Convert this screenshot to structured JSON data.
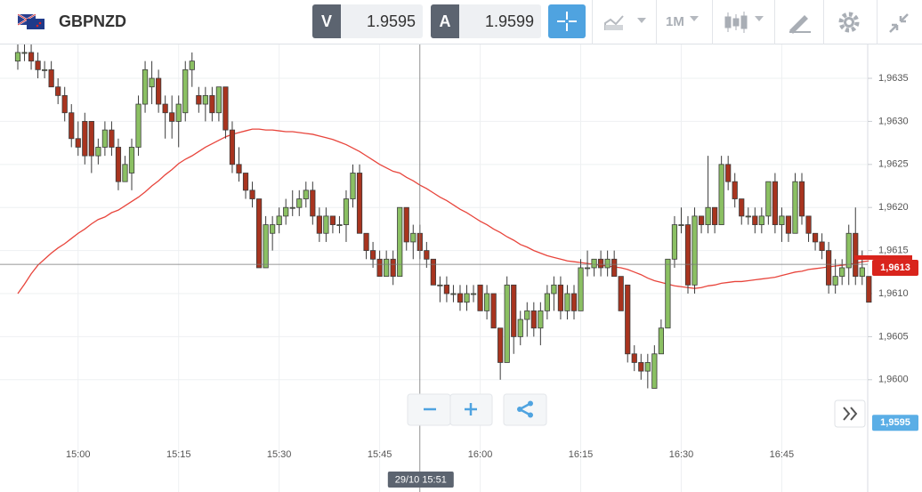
{
  "toolbar": {
    "symbol": "GBPNZD",
    "bid_label": "V",
    "bid": 1.9595,
    "ask_label": "A",
    "ask": 1.9599,
    "timeframe": "1M"
  },
  "chart_data": {
    "type": "candlestick",
    "categories": [
      null,
      null,
      null,
      null,
      null,
      null,
      null,
      null,
      null,
      "15:00",
      null,
      null,
      null,
      null,
      null,
      null,
      null,
      null,
      null,
      null,
      null,
      null,
      null,
      null,
      "15:15",
      null,
      null,
      null,
      null,
      null,
      null,
      null,
      null,
      null,
      null,
      null,
      null,
      null,
      null,
      "15:30",
      null,
      null,
      null,
      null,
      null,
      null,
      null,
      null,
      null,
      null,
      null,
      null,
      null,
      null,
      "15:45",
      null,
      null,
      null,
      null,
      null,
      null,
      null,
      null,
      null,
      null,
      null,
      null,
      null,
      null,
      "16:00",
      null,
      null,
      null,
      null,
      null,
      null,
      null,
      null,
      null,
      null,
      null,
      null,
      null,
      null,
      "16:15",
      null,
      null,
      null,
      null,
      null,
      null,
      null,
      null,
      null,
      null,
      null,
      null,
      null,
      null,
      "16:30",
      null,
      null,
      null,
      null,
      null,
      null,
      null,
      null,
      null,
      null,
      null,
      null,
      null,
      null,
      "16:45",
      null,
      null,
      null,
      null,
      null,
      null,
      null,
      null,
      null,
      null,
      null,
      null,
      null
    ],
    "open": [
      1.9637,
      1.9638,
      1.9638,
      1.9637,
      1.9636,
      1.9636,
      1.9634,
      1.9633,
      1.9631,
      1.9628,
      1.963,
      1.963,
      1.9626,
      1.9627,
      1.9629,
      1.9627,
      1.9623,
      1.9624,
      1.9627,
      1.9632,
      1.9634,
      1.9635,
      1.9632,
      1.9631,
      1.963,
      1.9631,
      1.9636,
      1.9633,
      1.9632,
      1.9633,
      1.9631,
      1.9634,
      1.9629,
      1.9625,
      1.9624,
      1.9622,
      1.9621,
      1.9613,
      1.9617,
      1.9618,
      1.9619,
      1.962,
      1.962,
      1.9621,
      1.9622,
      1.9619,
      1.9617,
      1.9619,
      1.9618,
      1.9618,
      1.9621,
      1.9624,
      1.9617,
      1.9615,
      1.9614,
      1.9612,
      1.9614,
      1.9612,
      1.962,
      1.9616,
      1.9617,
      1.9615,
      1.9614,
      1.9611,
      1.9611,
      1.961,
      1.961,
      1.9609,
      1.961,
      1.9611,
      1.9608,
      1.961,
      1.9606,
      1.9602,
      1.9611,
      1.9605,
      1.9607,
      1.9608,
      1.9606,
      1.9608,
      1.961,
      1.9611,
      1.9608,
      1.961,
      1.9608,
      1.9613,
      1.9613,
      1.9614,
      1.9613,
      1.9614,
      1.9612,
      1.9611,
      1.9603,
      1.9602,
      1.9601,
      1.9599,
      1.9603,
      1.9606,
      1.9614,
      1.9618,
      1.9618,
      1.9611,
      1.9619,
      1.9618,
      1.962,
      1.9618,
      1.9625,
      1.9623,
      1.9621,
      1.9619,
      1.9619,
      1.9618,
      1.9619,
      1.9623,
      1.9618,
      1.9619,
      1.9617,
      1.9623,
      1.9619,
      1.9617,
      1.9616,
      1.9615,
      1.9611,
      1.9612,
      1.9613,
      1.9617,
      1.9612,
      1.9612
    ],
    "high": [
      1.9639,
      1.9639,
      1.9639,
      1.9638,
      1.9637,
      1.9637,
      1.9635,
      1.9634,
      1.9632,
      1.963,
      1.9631,
      1.963,
      1.9628,
      1.963,
      1.963,
      1.9628,
      1.9626,
      1.9628,
      1.9633,
      1.9637,
      1.9637,
      1.9636,
      1.9633,
      1.9633,
      1.9633,
      1.9637,
      1.9638,
      1.9634,
      1.9634,
      1.9634,
      1.9634,
      1.9634,
      1.963,
      1.9627,
      1.9624,
      1.9623,
      1.9621,
      1.9619,
      1.9619,
      1.962,
      1.9621,
      1.9622,
      1.9622,
      1.9623,
      1.9623,
      1.962,
      1.962,
      1.9619,
      1.9619,
      1.9622,
      1.9625,
      1.9625,
      1.9617,
      1.9616,
      1.9615,
      1.9615,
      1.9615,
      1.962,
      1.962,
      1.9618,
      1.9618,
      1.9616,
      1.9614,
      1.9612,
      1.9612,
      1.9611,
      1.9611,
      1.9611,
      1.9611,
      1.9611,
      1.9611,
      1.961,
      1.9606,
      1.9612,
      1.9611,
      1.9608,
      1.9609,
      1.9609,
      1.9609,
      1.9611,
      1.9612,
      1.9612,
      1.9611,
      1.9611,
      1.9614,
      1.9615,
      1.9614,
      1.9615,
      1.9615,
      1.9615,
      1.9612,
      1.9611,
      1.9604,
      1.9603,
      1.9603,
      1.9604,
      1.9607,
      1.9614,
      1.9619,
      1.962,
      1.9619,
      1.962,
      1.9619,
      1.9626,
      1.962,
      1.9626,
      1.9626,
      1.9624,
      1.9621,
      1.962,
      1.962,
      1.962,
      1.9623,
      1.9624,
      1.962,
      1.9619,
      1.9624,
      1.9624,
      1.9619,
      1.9617,
      1.9617,
      1.9616,
      1.9614,
      1.9614,
      1.9618,
      1.962,
      1.9615,
      1.9612
    ],
    "low": [
      1.9636,
      1.9637,
      1.9636,
      1.9635,
      1.9635,
      1.9634,
      1.9632,
      1.963,
      1.9627,
      1.9626,
      1.9625,
      1.9624,
      1.9625,
      1.9626,
      1.9626,
      1.9622,
      1.9623,
      1.9622,
      1.9626,
      1.9631,
      1.9632,
      1.9631,
      1.9628,
      1.9628,
      1.9627,
      1.963,
      1.9634,
      1.9631,
      1.963,
      1.963,
      1.963,
      1.9628,
      1.9624,
      1.9623,
      1.9621,
      1.962,
      1.9613,
      1.9613,
      1.9615,
      1.9617,
      1.9618,
      1.9619,
      1.9619,
      1.962,
      1.9618,
      1.9616,
      1.9616,
      1.9617,
      1.9617,
      1.9616,
      1.962,
      1.9617,
      1.9614,
      1.9613,
      1.9612,
      1.9612,
      1.9611,
      1.9612,
      1.9615,
      1.9614,
      1.9614,
      1.9613,
      1.9611,
      1.9609,
      1.9609,
      1.9609,
      1.9608,
      1.9608,
      1.9609,
      1.9608,
      1.9607,
      1.9606,
      1.96,
      1.9602,
      1.9603,
      1.9604,
      1.9605,
      1.9605,
      1.9604,
      1.9607,
      1.9608,
      1.9607,
      1.9607,
      1.9607,
      1.9608,
      1.9612,
      1.9612,
      1.9612,
      1.9612,
      1.9612,
      1.9608,
      1.9602,
      1.9601,
      1.96,
      1.9599,
      1.9599,
      1.9603,
      1.9606,
      1.9613,
      1.9617,
      1.961,
      1.961,
      1.9617,
      1.9617,
      1.9617,
      1.9618,
      1.9622,
      1.962,
      1.9618,
      1.9618,
      1.9617,
      1.9617,
      1.9618,
      1.9617,
      1.9616,
      1.9616,
      1.9617,
      1.9618,
      1.9616,
      1.9615,
      1.9614,
      1.961,
      1.961,
      1.9611,
      1.9611,
      1.9611,
      1.9611,
      1.9609
    ],
    "close": [
      1.9638,
      1.9638,
      1.9637,
      1.9636,
      1.9636,
      1.9634,
      1.9633,
      1.9631,
      1.9628,
      1.9627,
      1.9626,
      1.9626,
      1.9627,
      1.9629,
      1.9627,
      1.9623,
      1.9625,
      1.9627,
      1.9632,
      1.9636,
      1.9635,
      1.9632,
      1.9631,
      1.963,
      1.9632,
      1.9636,
      1.9637,
      1.9632,
      1.9633,
      1.9631,
      1.9634,
      1.9629,
      1.9625,
      1.9624,
      1.9622,
      1.9621,
      1.9613,
      1.9618,
      1.9618,
      1.9619,
      1.962,
      1.962,
      1.9621,
      1.9622,
      1.9619,
      1.9617,
      1.9619,
      1.9618,
      1.9618,
      1.9621,
      1.9624,
      1.9617,
      1.9615,
      1.9614,
      1.9612,
      1.9614,
      1.9612,
      1.962,
      1.9616,
      1.9617,
      1.9615,
      1.9614,
      1.9611,
      1.9611,
      1.961,
      1.961,
      1.9609,
      1.961,
      1.961,
      1.9608,
      1.961,
      1.9606,
      1.9602,
      1.9611,
      1.9605,
      1.9607,
      1.9608,
      1.9606,
      1.9608,
      1.961,
      1.9611,
      1.9608,
      1.961,
      1.9608,
      1.9613,
      1.9613,
      1.9614,
      1.9613,
      1.9614,
      1.9612,
      1.9608,
      1.9603,
      1.9602,
      1.9601,
      1.9602,
      1.9603,
      1.9606,
      1.9614,
      1.9618,
      1.9618,
      1.9611,
      1.9619,
      1.9618,
      1.962,
      1.9618,
      1.9625,
      1.9623,
      1.9621,
      1.9619,
      1.9619,
      1.9618,
      1.9619,
      1.9623,
      1.9618,
      1.9619,
      1.9617,
      1.9623,
      1.9619,
      1.9617,
      1.9616,
      1.9615,
      1.9611,
      1.9612,
      1.9613,
      1.9617,
      1.9612,
      1.9613,
      1.9609
    ],
    "up_color": "#8bc063",
    "down_color": "#a8341f",
    "outline_color": "#3b3b3b",
    "moving_average": {
      "color": "#e8453c",
      "values": [
        1.961,
        1.96111,
        1.96123,
        1.96133,
        1.9614,
        1.96147,
        1.96153,
        1.96158,
        1.96164,
        1.9617,
        1.96175,
        1.96181,
        1.96186,
        1.96189,
        1.96194,
        1.96197,
        1.96202,
        1.96207,
        1.96212,
        1.96218,
        1.96225,
        1.96231,
        1.96238,
        1.96244,
        1.96251,
        1.96256,
        1.9626,
        1.96265,
        1.9627,
        1.96274,
        1.96278,
        1.96282,
        1.96285,
        1.96287,
        1.96289,
        1.96291,
        1.96291,
        1.9629,
        1.9629,
        1.96289,
        1.96288,
        1.96288,
        1.96287,
        1.96286,
        1.96285,
        1.96283,
        1.96281,
        1.96279,
        1.96276,
        1.96273,
        1.96269,
        1.96265,
        1.9626,
        1.96255,
        1.9625,
        1.96246,
        1.96242,
        1.9624,
        1.96235,
        1.96231,
        1.96226,
        1.96222,
        1.96217,
        1.96212,
        1.96208,
        1.96203,
        1.96198,
        1.96194,
        1.96189,
        1.96184,
        1.9618,
        1.96175,
        1.96171,
        1.96166,
        1.96162,
        1.96157,
        1.96154,
        1.9615,
        1.96147,
        1.96144,
        1.96142,
        1.9614,
        1.96138,
        1.96137,
        1.96136,
        1.96135,
        1.96134,
        1.96133,
        1.96132,
        1.96131,
        1.9613,
        1.96128,
        1.96125,
        1.96122,
        1.96118,
        1.96115,
        1.96113,
        1.96111,
        1.96109,
        1.96108,
        1.96107,
        1.96106,
        1.96107,
        1.96109,
        1.9611,
        1.96112,
        1.96113,
        1.96114,
        1.96114,
        1.96115,
        1.96116,
        1.96117,
        1.96118,
        1.96119,
        1.96121,
        1.96123,
        1.96125,
        1.96126,
        1.96128,
        1.96129,
        1.9613,
        1.96131,
        1.96132,
        1.96133,
        1.96134,
        1.96135,
        1.96137,
        1.96138
      ]
    },
    "ylim": [
      1.959,
      1.9639
    ],
    "yticks": [
      {
        "value": 1.96,
        "label": "1,9600"
      },
      {
        "value": 1.9605,
        "label": "1,9605"
      },
      {
        "value": 1.961,
        "label": "1,9610"
      },
      {
        "value": 1.9615,
        "label": "1,9615"
      },
      {
        "value": 1.962,
        "label": "1,9620"
      },
      {
        "value": 1.9625,
        "label": "1,9625"
      },
      {
        "value": 1.963,
        "label": "1,9630"
      },
      {
        "value": 1.9635,
        "label": "1,9635"
      }
    ],
    "grid": true,
    "crosshair": {
      "label": "29/10 15:51",
      "index": 60,
      "price": 1.96134
    },
    "price_markers": [
      {
        "value": 1.9613,
        "label": "1,9613",
        "color": "#d9241c"
      },
      {
        "value": 1.9595,
        "label": "1,9595",
        "color": "#5aaee6"
      }
    ]
  }
}
